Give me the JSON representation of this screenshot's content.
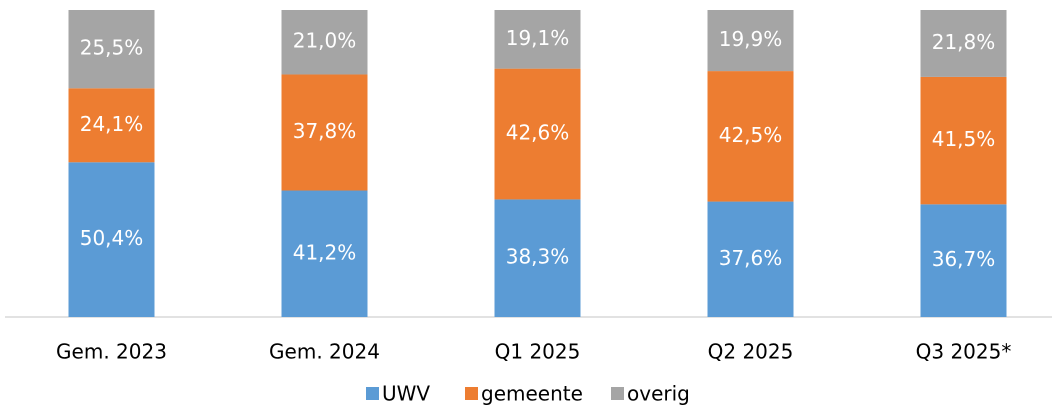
{
  "chart_data": {
    "type": "stacked_bar",
    "categories": [
      "Gem. 2023",
      "Gem. 2024",
      "Q1 2025",
      "Q2 2025",
      "Q3 2025*"
    ],
    "series": [
      {
        "name": "UWV",
        "color": "#5b9bd5",
        "values": [
          50.4,
          41.2,
          38.3,
          37.6,
          36.7
        ],
        "value_labels": [
          "50,4%",
          "41,2%",
          "38,3%",
          "37,6%",
          "36,7%"
        ]
      },
      {
        "name": "gemeente",
        "color": "#ed7d31",
        "values": [
          24.1,
          37.8,
          42.6,
          42.5,
          41.5
        ],
        "value_labels": [
          "24,1%",
          "37,8%",
          "42,6%",
          "42,5%",
          "41,5%"
        ]
      },
      {
        "name": "overig",
        "color": "#a5a5a5",
        "values": [
          25.5,
          21.0,
          19.1,
          19.9,
          21.8
        ],
        "value_labels": [
          "25,5%",
          "21,0%",
          "19,1%",
          "19,9%",
          "21,8%"
        ]
      }
    ],
    "ylim": [
      0,
      100
    ]
  }
}
